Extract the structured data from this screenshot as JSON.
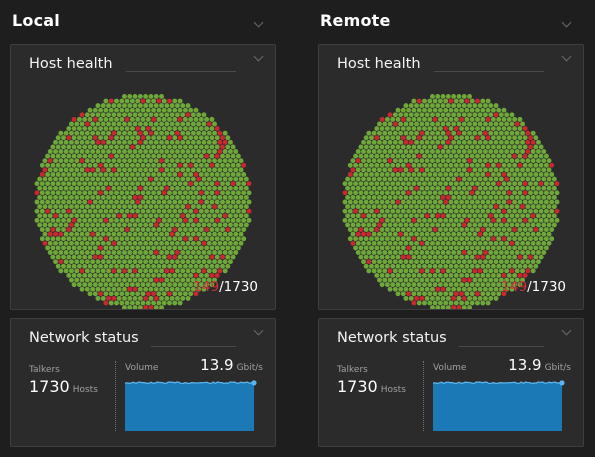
{
  "sections": [
    {
      "key": "local",
      "title": "Local",
      "host_health": {
        "title": "Host health",
        "unhealthy": "149",
        "separator": "/",
        "total": "1730"
      },
      "network_status": {
        "title": "Network status",
        "talkers_label": "Talkers",
        "talkers_value": "1730",
        "talkers_unit": "Hosts",
        "volume_label": "Volume",
        "volume_value": "13.9",
        "volume_unit": "Gbit/s"
      }
    },
    {
      "key": "remote",
      "title": "Remote",
      "host_health": {
        "title": "Host health",
        "unhealthy": "149",
        "separator": "/",
        "total": "1730"
      },
      "network_status": {
        "title": "Network status",
        "talkers_label": "Talkers",
        "talkers_value": "1730",
        "talkers_unit": "Hosts",
        "volume_label": "Volume",
        "volume_value": "13.9",
        "volume_unit": "Gbit/s"
      }
    }
  ],
  "colors": {
    "healthy": "#6fa83a",
    "unhealthy": "#c8282f",
    "volume_fill": "#1b7ab5",
    "volume_line": "#5ab4ee"
  }
}
